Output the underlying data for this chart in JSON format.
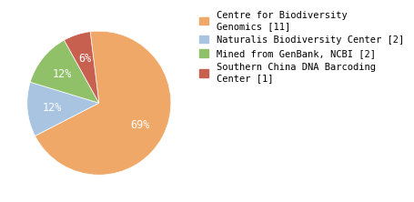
{
  "labels": [
    "Centre for Biodiversity\nGenomics [11]",
    "Naturalis Biodiversity Center [2]",
    "Mined from GenBank, NCBI [2]",
    "Southern China DNA Barcoding\nCenter [1]"
  ],
  "values": [
    68,
    12,
    12,
    6
  ],
  "colors": [
    "#F0A868",
    "#A8C4E0",
    "#90C068",
    "#C86050"
  ],
  "autopct_colors": [
    "white",
    "white",
    "white",
    "white"
  ],
  "startangle": 97,
  "background_color": "#ffffff",
  "legend_fontsize": 7.5,
  "autopct_fontsize": 8.5
}
